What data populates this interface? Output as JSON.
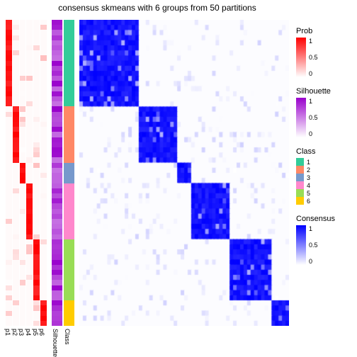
{
  "title": "consensus skmeans with 6 groups from 50 partitions",
  "title_fontsize": 12,
  "background_color": "#ffffff",
  "prob_colors": {
    "low": "#ffffff",
    "high": "#ff0000"
  },
  "sil_colors": {
    "low": "#ffffff",
    "high": "#9900cc"
  },
  "consensus_colors": {
    "low": "#ffffff",
    "high": "#0000ff"
  },
  "class_colors": [
    "#33cc99",
    "#ff8866",
    "#7799cc",
    "#ff88cc",
    "#99dd55",
    "#ffcc00"
  ],
  "group_sizes": [
    0.28,
    0.19,
    0.06,
    0.18,
    0.21,
    0.08
  ],
  "prob_tracks": [
    "p1",
    "p2",
    "p3",
    "p4",
    "p5",
    "p6"
  ],
  "sil_track_label": "Silhouette",
  "class_track_label": "Class",
  "legends": {
    "prob": {
      "title": "Prob",
      "ticks": [
        "1",
        "0.5",
        "0"
      ]
    },
    "silhouette": {
      "title": "Silhouette",
      "ticks": [
        "1",
        "0.5",
        "0"
      ]
    },
    "class": {
      "title": "Class",
      "labels": [
        "1",
        "2",
        "3",
        "4",
        "5",
        "6"
      ]
    },
    "consensus": {
      "title": "Consensus",
      "ticks": [
        "1",
        "0.5",
        "0"
      ]
    }
  },
  "heatmap_samples": 60,
  "heatmap_noise": 0.18
}
